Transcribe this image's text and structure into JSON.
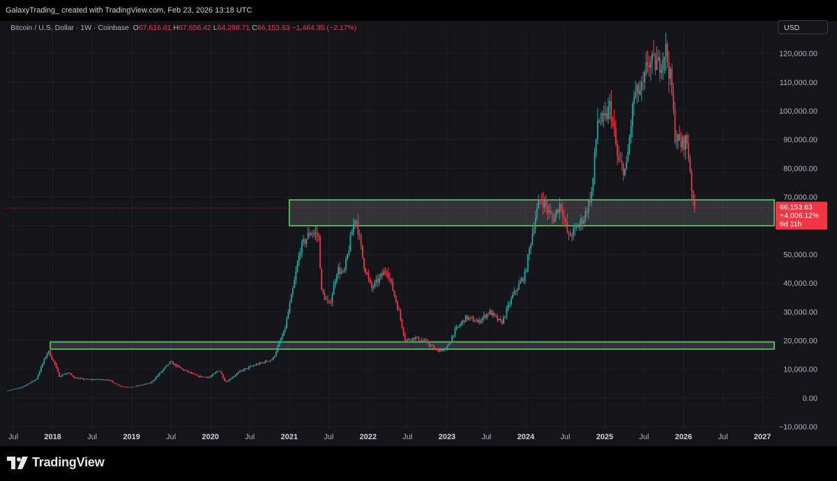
{
  "header": {
    "credit": "GalaxyTrading_ created with TradingView.com, Feb 23, 2026 13:18 UTC"
  },
  "legend": {
    "symbol": "Bitcoin / U.S. Dollar · 1W · Coinbase",
    "o_label": "O",
    "o_value": "67,616.01",
    "h_label": "H",
    "h_value": "67,656.42",
    "l_label": "L",
    "l_value": "64,298.71",
    "c_label": "C",
    "c_value": "66,153.63",
    "change": "−1,464.35 (−2.17%)"
  },
  "currency": "USD",
  "price_tag": {
    "price": "66,153.63",
    "change_pct": "+4,006.12%",
    "countdown": "6d 11h"
  },
  "brand": {
    "name": "TradingView"
  },
  "colors": {
    "up": "#26a69a",
    "down": "#f23645",
    "zone_border": "#5fd35f",
    "background": "#14151b"
  },
  "chart_data": {
    "type": "line",
    "interval": "1W",
    "y_unit": "USD",
    "y_ticks": [
      -10000,
      0,
      10000,
      20000,
      30000,
      40000,
      50000,
      60000,
      70000,
      80000,
      90000,
      100000,
      110000,
      120000
    ],
    "y_tick_labels": [
      "−10,000.00",
      "0.00",
      "10,000.00",
      "20,000.00",
      "30,000.00",
      "40,000.00",
      "50,000.00",
      "60,000.00",
      "70,000.00",
      "80,000.00",
      "90,000.00",
      "100,000.00",
      "110,000.00",
      "120,000.00"
    ],
    "ylim": [
      -10000,
      126000
    ],
    "x_range": [
      2017.42,
      2027.15
    ],
    "x_ticks": [
      {
        "t": 2017.5,
        "label": "Jul"
      },
      {
        "t": 2018.0,
        "label": "2018"
      },
      {
        "t": 2018.5,
        "label": "Jul"
      },
      {
        "t": 2019.0,
        "label": "2019"
      },
      {
        "t": 2019.5,
        "label": "Jul"
      },
      {
        "t": 2020.0,
        "label": "2020"
      },
      {
        "t": 2020.5,
        "label": "Jul"
      },
      {
        "t": 2021.0,
        "label": "2021"
      },
      {
        "t": 2021.5,
        "label": "Jul"
      },
      {
        "t": 2022.0,
        "label": "2022"
      },
      {
        "t": 2022.5,
        "label": "Jul"
      },
      {
        "t": 2023.0,
        "label": "2023"
      },
      {
        "t": 2023.5,
        "label": "Jul"
      },
      {
        "t": 2024.0,
        "label": "2024"
      },
      {
        "t": 2024.5,
        "label": "Jul"
      },
      {
        "t": 2025.0,
        "label": "2025"
      },
      {
        "t": 2025.5,
        "label": "Jul"
      },
      {
        "t": 2026.0,
        "label": "2026"
      },
      {
        "t": 2026.5,
        "label": "Jul"
      },
      {
        "t": 2027.0,
        "label": "2027"
      }
    ],
    "price_path": [
      [
        2017.42,
        2500
      ],
      [
        2017.6,
        3500
      ],
      [
        2017.8,
        6500
      ],
      [
        2017.95,
        16500
      ],
      [
        2018.04,
        11500
      ],
      [
        2018.09,
        7500
      ],
      [
        2018.2,
        8800
      ],
      [
        2018.3,
        6900
      ],
      [
        2018.45,
        6400
      ],
      [
        2018.7,
        6400
      ],
      [
        2018.88,
        4000
      ],
      [
        2019.0,
        3700
      ],
      [
        2019.25,
        5200
      ],
      [
        2019.45,
        11000
      ],
      [
        2019.5,
        12500
      ],
      [
        2019.65,
        10000
      ],
      [
        2019.85,
        7500
      ],
      [
        2020.0,
        7200
      ],
      [
        2020.12,
        9800
      ],
      [
        2020.2,
        5500
      ],
      [
        2020.4,
        9500
      ],
      [
        2020.58,
        11500
      ],
      [
        2020.8,
        13500
      ],
      [
        2020.95,
        23500
      ],
      [
        2021.05,
        37000
      ],
      [
        2021.15,
        52000
      ],
      [
        2021.28,
        58000
      ],
      [
        2021.38,
        56500
      ],
      [
        2021.42,
        37000
      ],
      [
        2021.52,
        32000
      ],
      [
        2021.62,
        45000
      ],
      [
        2021.7,
        43000
      ],
      [
        2021.85,
        64000
      ],
      [
        2021.95,
        47000
      ],
      [
        2022.05,
        38000
      ],
      [
        2022.25,
        45000
      ],
      [
        2022.4,
        30000
      ],
      [
        2022.48,
        20000
      ],
      [
        2022.6,
        21000
      ],
      [
        2022.75,
        19500
      ],
      [
        2022.87,
        16500
      ],
      [
        2023.0,
        16800
      ],
      [
        2023.1,
        23000
      ],
      [
        2023.25,
        28000
      ],
      [
        2023.4,
        26500
      ],
      [
        2023.55,
        30000
      ],
      [
        2023.7,
        26000
      ],
      [
        2023.85,
        36000
      ],
      [
        2024.0,
        43000
      ],
      [
        2024.12,
        62000
      ],
      [
        2024.2,
        70000
      ],
      [
        2024.35,
        62000
      ],
      [
        2024.45,
        68000
      ],
      [
        2024.55,
        56000
      ],
      [
        2024.62,
        58000
      ],
      [
        2024.75,
        63000
      ],
      [
        2024.85,
        72000
      ],
      [
        2024.92,
        97000
      ],
      [
        2025.0,
        96000
      ],
      [
        2025.08,
        102000
      ],
      [
        2025.18,
        82000
      ],
      [
        2025.28,
        79000
      ],
      [
        2025.38,
        105000
      ],
      [
        2025.5,
        108000
      ],
      [
        2025.55,
        117000
      ],
      [
        2025.7,
        116000
      ],
      [
        2025.78,
        122000
      ],
      [
        2025.85,
        110000
      ],
      [
        2025.9,
        92000
      ],
      [
        2025.97,
        88000
      ],
      [
        2026.05,
        90000
      ],
      [
        2026.1,
        78000
      ],
      [
        2026.13,
        67000
      ],
      [
        2026.15,
        66153.63
      ]
    ],
    "zones": [
      {
        "y_low": 60000,
        "y_high": 69000,
        "x_start": 2021.0
      },
      {
        "y_low": 17000,
        "y_high": 19500,
        "x_start": 2017.97
      }
    ],
    "last_price": 66153.63
  }
}
